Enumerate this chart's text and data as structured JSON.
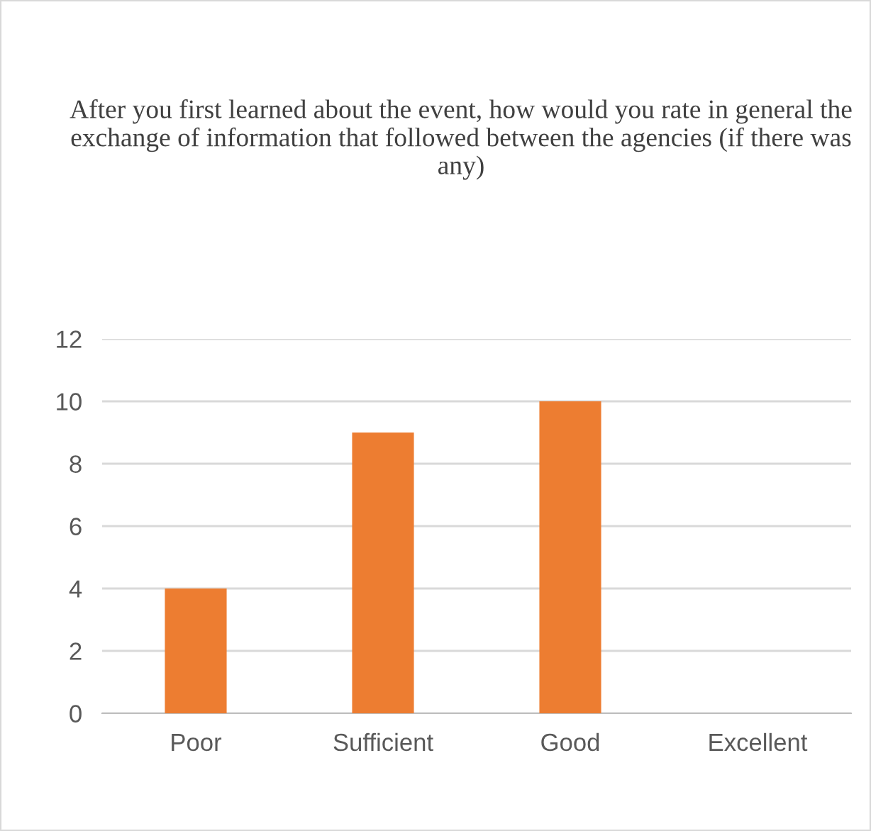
{
  "chart_data": {
    "type": "bar",
    "title": "After you first learned about the event, how would you rate in general the exchange of information that followed between the agencies (if there was any)",
    "categories": [
      "Poor",
      "Sufficient",
      "Good",
      "Excellent"
    ],
    "values": [
      4,
      9,
      10,
      0
    ],
    "color": "#ed7d31",
    "ylim": [
      0,
      12
    ],
    "yticks": [
      0,
      2,
      4,
      6,
      8,
      10,
      12
    ],
    "grid": "y",
    "legend": false
  }
}
